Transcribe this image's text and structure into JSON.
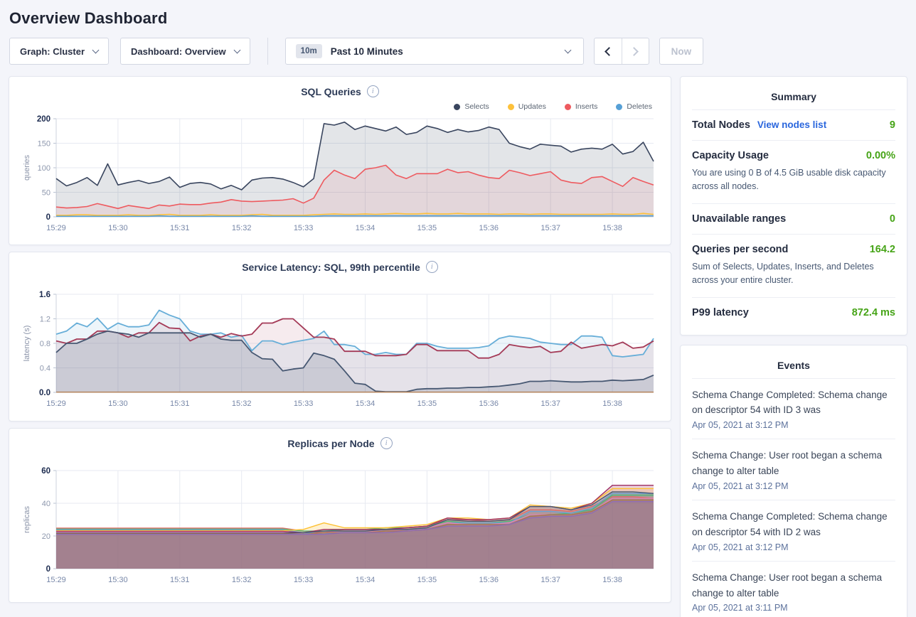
{
  "page": {
    "title": "Overview Dashboard"
  },
  "toolbar": {
    "graph_dropdown": "Graph: Cluster",
    "dashboard_dropdown": "Dashboard: Overview",
    "time_badge": "10m",
    "time_label": "Past 10 Minutes",
    "now_label": "Now"
  },
  "icons": {
    "info_glyph": "i"
  },
  "summary": {
    "title": "Summary",
    "rows": [
      {
        "label": "Total Nodes",
        "link": "View nodes list",
        "value": "9",
        "desc": ""
      },
      {
        "label": "Capacity Usage",
        "link": "",
        "value": "0.00%",
        "desc": "You are using 0 B of 4.5 GiB usable disk capacity across all nodes."
      },
      {
        "label": "Unavailable ranges",
        "link": "",
        "value": "0",
        "desc": ""
      },
      {
        "label": "Queries per second",
        "link": "",
        "value": "164.2",
        "desc": "Sum of Selects, Updates, Inserts, and Deletes across your entire cluster."
      },
      {
        "label": "P99 latency",
        "link": "",
        "value": "872.4 ms",
        "desc": ""
      }
    ]
  },
  "events": {
    "title": "Events",
    "items": [
      {
        "text": "Schema Change Completed: Schema change on descriptor 54 with ID 3 was",
        "time": "Apr 05, 2021 at 3:12 PM"
      },
      {
        "text": "Schema Change: User root began a schema change to alter table",
        "time": "Apr 05, 2021 at 3:12 PM"
      },
      {
        "text": "Schema Change Completed: Schema change on descriptor 54 with ID 2 was",
        "time": "Apr 05, 2021 at 3:12 PM"
      },
      {
        "text": "Schema Change: User root began a schema change to alter table",
        "time": "Apr 05, 2021 at 3:11 PM"
      }
    ]
  },
  "chart_data": [
    {
      "type": "area",
      "title": "SQL Queries",
      "ylabel": "queries",
      "ylim": [
        0,
        200
      ],
      "yticks": [
        0,
        50,
        100,
        150,
        200
      ],
      "ytick_labels": [
        "0",
        "50",
        "100",
        "150",
        "200"
      ],
      "x_labels": [
        "15:29",
        "15:30",
        "15:31",
        "15:32",
        "15:33",
        "15:34",
        "15:35",
        "15:36",
        "15:37",
        "15:38"
      ],
      "points_per_label": 6,
      "legend": [
        {
          "name": "Selects",
          "color": "#39455e"
        },
        {
          "name": "Updates",
          "color": "#fdc13b"
        },
        {
          "name": "Inserts",
          "color": "#ee5a5f"
        },
        {
          "name": "Deletes",
          "color": "#56a0d6"
        }
      ],
      "series": [
        {
          "name": "Selects",
          "color": "#39455e",
          "fill_opacity": 0.14,
          "width": 1.6,
          "values": [
            78,
            63,
            70,
            80,
            64,
            108,
            65,
            70,
            74,
            68,
            72,
            81,
            60,
            68,
            70,
            67,
            57,
            64,
            55,
            75,
            79,
            80,
            77,
            70,
            61,
            78,
            190,
            187,
            193,
            178,
            185,
            180,
            175,
            183,
            168,
            172,
            185,
            180,
            172,
            178,
            173,
            176,
            183,
            178,
            150,
            143,
            138,
            148,
            146,
            144,
            132,
            138,
            140,
            138,
            148,
            128,
            133,
            152,
            113
          ]
        },
        {
          "name": "Inserts",
          "color": "#ee5a5f",
          "fill_opacity": 0.1,
          "width": 1.6,
          "values": [
            20,
            18,
            19,
            21,
            27,
            22,
            17,
            23,
            20,
            17,
            24,
            22,
            26,
            25,
            25,
            28,
            30,
            35,
            32,
            31,
            32,
            33,
            34,
            37,
            28,
            38,
            75,
            95,
            85,
            78,
            97,
            100,
            105,
            85,
            78,
            88,
            88,
            88,
            97,
            90,
            92,
            85,
            80,
            78,
            95,
            90,
            84,
            88,
            92,
            75,
            70,
            68,
            80,
            82,
            72,
            62,
            80,
            72,
            65
          ]
        },
        {
          "name": "Updates",
          "color": "#fdc13b",
          "fill_opacity": 0.1,
          "width": 1.6,
          "values": [
            3,
            3,
            4,
            4,
            3,
            3,
            3,
            4,
            3,
            3,
            4,
            5,
            3,
            3,
            3,
            4,
            3,
            3,
            3,
            4,
            5,
            3,
            3,
            3,
            3,
            4,
            5,
            6,
            5,
            5,
            6,
            5,
            6,
            7,
            6,
            6,
            7,
            6,
            6,
            7,
            6,
            6,
            6,
            5,
            6,
            6,
            5,
            6,
            6,
            5,
            5,
            5,
            5,
            5,
            6,
            5,
            5,
            7,
            5
          ]
        },
        {
          "name": "Deletes",
          "color": "#56a0d6",
          "fill_opacity": 0.15,
          "width": 1.6,
          "values": [
            1,
            1,
            1,
            1,
            1,
            1,
            1,
            1,
            1,
            1,
            2,
            1,
            1,
            1,
            1,
            1,
            1,
            1,
            1,
            2,
            1,
            1,
            1,
            1,
            1,
            1,
            2,
            2,
            2,
            2,
            2,
            2,
            2,
            2,
            2,
            2,
            2,
            2,
            2,
            2,
            2,
            2,
            2,
            2,
            2,
            2,
            2,
            2,
            2,
            2,
            2,
            2,
            2,
            2,
            2,
            2,
            2,
            2,
            2
          ]
        }
      ]
    },
    {
      "type": "area",
      "title": "Service Latency: SQL, 99th percentile",
      "ylabel": "latency (s)",
      "ylim": [
        0,
        1.6
      ],
      "yticks": [
        0,
        0.4,
        0.8,
        1.2,
        1.6
      ],
      "ytick_labels": [
        "0.0",
        "0.4",
        "0.8",
        "1.2",
        "1.6"
      ],
      "x_labels": [
        "15:29",
        "15:30",
        "15:31",
        "15:32",
        "15:33",
        "15:34",
        "15:35",
        "15:36",
        "15:37",
        "15:38"
      ],
      "points_per_label": 6,
      "legend": [],
      "series": [
        {
          "name": "node-blue",
          "color": "#67aed8",
          "fill_opacity": 0.12,
          "width": 1.8,
          "values": [
            0.95,
            1.0,
            1.13,
            1.07,
            1.21,
            1.03,
            1.13,
            1.07,
            1.07,
            1.1,
            1.34,
            1.26,
            1.2,
            1.0,
            0.95,
            0.95,
            0.97,
            0.9,
            0.93,
            0.68,
            0.84,
            0.84,
            0.78,
            0.82,
            0.85,
            0.88,
            1.0,
            0.78,
            0.78,
            0.75,
            0.62,
            0.62,
            0.65,
            0.62,
            0.62,
            0.8,
            0.8,
            0.75,
            0.72,
            0.72,
            0.72,
            0.73,
            0.76,
            0.88,
            0.92,
            0.9,
            0.88,
            0.82,
            0.8,
            0.78,
            0.78,
            0.92,
            0.92,
            0.9,
            0.6,
            0.58,
            0.6,
            0.62,
            0.88
          ]
        },
        {
          "name": "node-maroon",
          "color": "#a43a57",
          "fill_opacity": 0.1,
          "width": 1.8,
          "values": [
            0.84,
            0.8,
            0.87,
            0.87,
            1.0,
            1.0,
            0.97,
            0.9,
            0.97,
            0.97,
            1.14,
            1.05,
            1.04,
            0.84,
            0.92,
            0.95,
            0.9,
            0.96,
            0.92,
            0.95,
            1.13,
            1.13,
            1.2,
            1.2,
            1.05,
            0.9,
            0.9,
            0.87,
            0.67,
            0.67,
            0.67,
            0.6,
            0.6,
            0.6,
            0.62,
            0.78,
            0.78,
            0.68,
            0.68,
            0.68,
            0.68,
            0.56,
            0.56,
            0.62,
            0.78,
            0.75,
            0.73,
            0.75,
            0.65,
            0.67,
            0.82,
            0.72,
            0.75,
            0.78,
            0.76,
            0.82,
            0.72,
            0.74,
            0.84
          ]
        },
        {
          "name": "node-navy",
          "color": "#475872",
          "fill_opacity": 0.16,
          "width": 1.8,
          "values": [
            0.65,
            0.8,
            0.8,
            0.87,
            0.95,
            1.0,
            0.97,
            0.95,
            0.9,
            0.97,
            0.97,
            0.97,
            0.97,
            0.97,
            0.9,
            0.95,
            0.87,
            0.85,
            0.85,
            0.65,
            0.55,
            0.54,
            0.35,
            0.38,
            0.4,
            0.64,
            0.6,
            0.54,
            0.35,
            0.15,
            0.13,
            0.02,
            0.01,
            0.01,
            0.01,
            0.05,
            0.06,
            0.06,
            0.07,
            0.07,
            0.08,
            0.08,
            0.09,
            0.1,
            0.12,
            0.14,
            0.18,
            0.18,
            0.19,
            0.18,
            0.17,
            0.17,
            0.18,
            0.18,
            0.2,
            0.19,
            0.2,
            0.21,
            0.28
          ]
        },
        {
          "name": "node-tan",
          "color": "#b5835a",
          "fill_opacity": 0,
          "width": 1.5,
          "value": 0.005
        }
      ]
    },
    {
      "type": "area",
      "title": "Replicas per Node",
      "ylabel": "replicas",
      "ylim": [
        0,
        60
      ],
      "yticks": [
        0,
        20,
        40,
        60
      ],
      "ytick_labels": [
        "0",
        "20",
        "40",
        "60"
      ],
      "x_labels": [
        "15:29",
        "15:30",
        "15:31",
        "15:32",
        "15:33",
        "15:34",
        "15:35",
        "15:36",
        "15:37",
        "15:38"
      ],
      "points_per_label": 3,
      "legend": [],
      "series": [
        {
          "name": "n1",
          "color": "#e06a65",
          "fill_opacity": 0.22,
          "width": 1.4,
          "values": [
            24.8,
            24.8,
            24.8,
            24.8,
            24.8,
            24.8,
            24.8,
            24.8,
            24.8,
            24.8,
            24.8,
            24.8,
            23,
            22,
            24,
            24,
            24,
            25,
            26,
            30,
            30,
            29,
            30,
            36,
            36,
            35,
            38,
            44,
            44,
            43
          ]
        },
        {
          "name": "n2",
          "color": "#4fb578",
          "fill_opacity": 0.22,
          "width": 1.4,
          "values": [
            24.2,
            24.2,
            24.2,
            24.2,
            24.2,
            24.2,
            24.2,
            24.2,
            24.2,
            24.2,
            24.2,
            24.2,
            23,
            23,
            24,
            24,
            25,
            25,
            26,
            29,
            28,
            28,
            29,
            33,
            33,
            34,
            36,
            45,
            45,
            45
          ]
        },
        {
          "name": "n3",
          "color": "#6b9fd0",
          "fill_opacity": 0.22,
          "width": 1.4,
          "values": [
            23.8,
            23.8,
            23.8,
            23.8,
            23.8,
            23.8,
            23.8,
            23.8,
            23.8,
            23.8,
            23.8,
            23.8,
            22,
            21,
            23,
            23,
            24,
            24,
            25,
            28,
            28,
            28,
            28,
            35,
            35,
            34,
            37,
            46,
            46,
            46
          ]
        },
        {
          "name": "n4",
          "color": "#fdc132",
          "fill_opacity": 0.22,
          "width": 1.4,
          "values": [
            23.2,
            23.2,
            23.2,
            23.2,
            23.2,
            23.2,
            23.2,
            23.2,
            23.2,
            23.2,
            23.2,
            23.2,
            24,
            28,
            25,
            25,
            25,
            26,
            27,
            31,
            31,
            30,
            31,
            39,
            38,
            37,
            40,
            49,
            49,
            49
          ]
        },
        {
          "name": "n5",
          "color": "#9e2f63",
          "fill_opacity": 0.22,
          "width": 1.4,
          "values": [
            22.8,
            22.8,
            22.8,
            22.8,
            22.8,
            22.8,
            22.8,
            22.8,
            22.8,
            22.8,
            22.8,
            22.8,
            22,
            24,
            24,
            24,
            24,
            25,
            26,
            31,
            30,
            30,
            31,
            38,
            38,
            36,
            40,
            51,
            51,
            51
          ]
        },
        {
          "name": "n6",
          "color": "#e183b4",
          "fill_opacity": 0.22,
          "width": 1.4,
          "values": [
            22.3,
            22.3,
            22.3,
            22.3,
            22.3,
            22.3,
            22.3,
            22.3,
            22.3,
            22.3,
            22.3,
            22.3,
            21,
            22,
            23,
            23,
            23,
            24,
            25,
            28,
            27,
            27,
            28,
            33,
            33,
            33,
            35,
            43,
            43,
            43
          ]
        },
        {
          "name": "n7",
          "color": "#475872",
          "fill_opacity": 0.22,
          "width": 1.4,
          "values": [
            21.8,
            21.8,
            21.8,
            21.8,
            21.8,
            21.8,
            21.8,
            21.8,
            21.8,
            21.8,
            21.8,
            21.8,
            22,
            23,
            23,
            23,
            24,
            24,
            25,
            30,
            29,
            29,
            30,
            38,
            38,
            36,
            39,
            47,
            47,
            46
          ]
        },
        {
          "name": "n8",
          "color": "#a5754f",
          "fill_opacity": 0.22,
          "width": 1.4,
          "values": [
            21.4,
            21.4,
            21.4,
            21.4,
            21.4,
            21.4,
            21.4,
            21.4,
            21.4,
            21.4,
            21.4,
            21.4,
            21,
            22,
            22,
            22,
            23,
            23,
            24,
            27,
            27,
            27,
            27,
            32,
            33,
            33,
            35,
            42,
            42,
            42
          ]
        },
        {
          "name": "n9",
          "color": "#8f6bb5",
          "fill_opacity": 0.22,
          "width": 1.4,
          "values": [
            21,
            21,
            21,
            21,
            21,
            21,
            21,
            21,
            21,
            21,
            21,
            21,
            21,
            21,
            22,
            22,
            22,
            23,
            24,
            26,
            26,
            26,
            27,
            31,
            32,
            32,
            34,
            41,
            41,
            41
          ]
        }
      ]
    }
  ]
}
